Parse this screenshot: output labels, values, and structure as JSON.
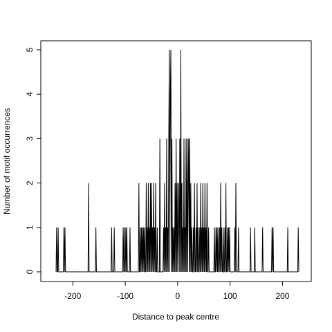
{
  "chart_data": {
    "type": "line",
    "title": "",
    "xlabel": "Distance to peak centre",
    "ylabel": "Number of motif occurrences",
    "xlim": [
      -240,
      235
    ],
    "ylim": [
      0,
      5
    ],
    "xticks": [
      -200,
      -100,
      0,
      100,
      200
    ],
    "xtick_labels": [
      "-200",
      "-100",
      "0",
      "100",
      "200"
    ],
    "yticks": [
      0,
      1,
      2,
      3,
      4,
      5
    ],
    "ytick_labels": [
      "0",
      "1",
      "2",
      "3",
      "4",
      "5"
    ],
    "grid": false,
    "legend": "none",
    "x": [
      -232,
      -231,
      -230,
      -229,
      -228,
      -227,
      -226,
      -225,
      -224,
      -223,
      -222,
      -221,
      -220,
      -219,
      -218,
      -217,
      -216,
      -215,
      -214,
      -213,
      -212,
      -172,
      -171,
      -170,
      -169,
      -168,
      -158,
      -157,
      -156,
      -155,
      -154,
      -127,
      -126,
      -125,
      -124,
      -123,
      -122,
      -121,
      -120,
      -119,
      -118,
      -117,
      -105,
      -104,
      -103,
      -102,
      -101,
      -100,
      -99,
      -98,
      -97,
      -96,
      -95,
      -94,
      -93,
      -92,
      -91,
      -90,
      -89,
      -76,
      -75,
      -74,
      -73,
      -72,
      -71,
      -70,
      -69,
      -68,
      -67,
      -66,
      -65,
      -64,
      -63,
      -62,
      -61,
      -60,
      -59,
      -58,
      -57,
      -56,
      -55,
      -54,
      -53,
      -52,
      -51,
      -50,
      -49,
      -48,
      -47,
      -46,
      -45,
      -44,
      -43,
      -42,
      -41,
      -40,
      -39,
      -38,
      -37,
      -36,
      -35,
      -34,
      -33,
      -32,
      -31,
      -30,
      -29,
      -28,
      -27,
      -26,
      -25,
      -24,
      -23,
      -22,
      -21,
      -20,
      -19,
      -18,
      -17,
      -16,
      -15,
      -14,
      -13,
      -12,
      -11,
      -10,
      -9,
      -8,
      -7,
      -6,
      -5,
      -4,
      -3,
      -2,
      -1,
      0,
      1,
      2,
      3,
      4,
      5,
      6,
      7,
      8,
      9,
      10,
      11,
      12,
      13,
      14,
      15,
      16,
      17,
      18,
      19,
      20,
      21,
      22,
      23,
      24,
      25,
      26,
      27,
      28,
      29,
      30,
      31,
      32,
      33,
      34,
      35,
      36,
      37,
      38,
      39,
      40,
      41,
      42,
      43,
      44,
      45,
      46,
      47,
      48,
      49,
      50,
      51,
      52,
      53,
      54,
      55,
      56,
      57,
      58,
      59,
      60,
      68,
      69,
      70,
      71,
      72,
      73,
      74,
      75,
      76,
      77,
      78,
      79,
      80,
      81,
      82,
      83,
      84,
      85,
      86,
      87,
      88,
      89,
      90,
      91,
      92,
      93,
      94,
      95,
      96,
      97,
      98,
      99,
      100,
      106,
      107,
      108,
      109,
      110,
      111,
      112,
      113,
      114,
      115,
      116,
      117,
      137,
      138,
      139,
      140,
      141,
      145,
      146,
      147,
      148,
      160,
      161,
      162,
      163,
      178,
      179,
      180,
      181,
      182,
      183,
      208,
      209,
      210,
      211,
      228,
      229,
      230,
      231
    ],
    "values": [
      0,
      1,
      0,
      0,
      1,
      0,
      0,
      0,
      0,
      0,
      0,
      0,
      0,
      0,
      0,
      1,
      0,
      1,
      0,
      0,
      0,
      0,
      0,
      2,
      0,
      0,
      0,
      0,
      1,
      0,
      0,
      0,
      1,
      0,
      0,
      0,
      0,
      1,
      0,
      0,
      0,
      0,
      0,
      1,
      0,
      1,
      0,
      0,
      1,
      0,
      1,
      0,
      0,
      0,
      0,
      0,
      1,
      0,
      0,
      0,
      0,
      2,
      0,
      0,
      1,
      0,
      1,
      0,
      1,
      0,
      1,
      0,
      1,
      0,
      0,
      2,
      0,
      1,
      0,
      2,
      0,
      1,
      0,
      2,
      0,
      2,
      0,
      1,
      0,
      2,
      0,
      1,
      0,
      2,
      0,
      0,
      1,
      0,
      0,
      0,
      0,
      3,
      0,
      0,
      0,
      0,
      0,
      0,
      1,
      0,
      2,
      0,
      1,
      0,
      3,
      0,
      1,
      0,
      3,
      5,
      0,
      4,
      5,
      0,
      3,
      0,
      1,
      0,
      1,
      0,
      2,
      0,
      3,
      0,
      2,
      0,
      1,
      2,
      0,
      3,
      0,
      5,
      0,
      2,
      0,
      1,
      0,
      3,
      0,
      1,
      0,
      3,
      0,
      3,
      0,
      2,
      3,
      0,
      3,
      0,
      2,
      0,
      1,
      0,
      0,
      1,
      0,
      2,
      0,
      0,
      1,
      0,
      2,
      0,
      1,
      0,
      0,
      1,
      0,
      2,
      0,
      1,
      0,
      2,
      0,
      1,
      0,
      2,
      0,
      1,
      0,
      2,
      0,
      0,
      1,
      0,
      0,
      0,
      1,
      0,
      0,
      1,
      0,
      1,
      0,
      1,
      0,
      0,
      1,
      0,
      2,
      0,
      1,
      0,
      0,
      1,
      0,
      0,
      1,
      0,
      2,
      0,
      0,
      1,
      0,
      1,
      0,
      1,
      0,
      0,
      0,
      0,
      1,
      0,
      2,
      0,
      0,
      0,
      0,
      1,
      0,
      0,
      0,
      1,
      0,
      0,
      0,
      0,
      1,
      0,
      0,
      0,
      1,
      0,
      0,
      0,
      1,
      0,
      1,
      0,
      0,
      0,
      1,
      0,
      0,
      0,
      1,
      0
    ]
  }
}
